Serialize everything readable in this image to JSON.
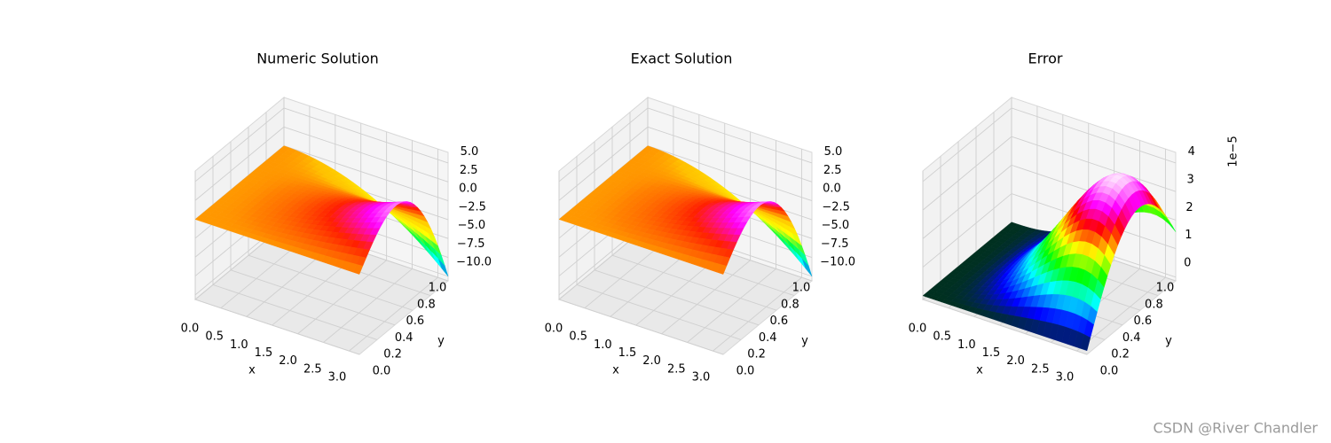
{
  "chart_data": [
    {
      "type": "surface",
      "title": "Numeric Solution",
      "xlabel": "x",
      "ylabel": "y",
      "xlim": [
        0,
        3.2
      ],
      "ylim": [
        0,
        1
      ],
      "zlim": [
        -10.6,
        6.4
      ],
      "xticks": [
        {
          "value": 0,
          "label": "0.0"
        },
        0.5,
        {
          "value": 1,
          "label": "1.0"
        },
        1.5,
        {
          "value": 2,
          "label": "2.0"
        },
        2.5,
        {
          "value": 3,
          "label": "3.0"
        }
      ],
      "yticks": [
        {
          "value": 0,
          "label": "0.0"
        },
        0.2,
        0.4,
        0.6,
        0.8,
        {
          "value": 1,
          "label": "1.0"
        }
      ],
      "zticks": [
        {
          "value": 5,
          "label": "5.0"
        },
        2.5,
        {
          "value": 0,
          "label": "0.0"
        },
        {
          "value": -2.5,
          "label": "−2.5"
        },
        {
          "value": -5,
          "label": "−5.0"
        },
        {
          "value": -7.5,
          "label": "−7.5"
        },
        {
          "value": -10,
          "label": "−10.0"
        }
      ]
    },
    {
      "type": "surface",
      "title": "Exact Solution",
      "xlabel": "x",
      "ylabel": "y",
      "xlim": [
        0,
        3.2
      ],
      "ylim": [
        0,
        1
      ],
      "zlim": [
        -10.6,
        6.4
      ],
      "xticks": [
        {
          "value": 0,
          "label": "0.0"
        },
        0.5,
        {
          "value": 1,
          "label": "1.0"
        },
        1.5,
        {
          "value": 2,
          "label": "2.0"
        },
        2.5,
        {
          "value": 3,
          "label": "3.0"
        }
      ],
      "yticks": [
        {
          "value": 0,
          "label": "0.0"
        },
        0.2,
        0.4,
        0.6,
        0.8,
        {
          "value": 1,
          "label": "1.0"
        }
      ],
      "zticks": [
        {
          "value": 5,
          "label": "5.0"
        },
        2.5,
        {
          "value": 0,
          "label": "0.0"
        },
        {
          "value": -2.5,
          "label": "−2.5"
        },
        {
          "value": -5,
          "label": "−5.0"
        },
        {
          "value": -7.5,
          "label": "−7.5"
        },
        {
          "value": -10,
          "label": "−10.0"
        }
      ]
    },
    {
      "type": "error-surface",
      "title": "Error",
      "xlabel": "x",
      "ylabel": "y",
      "z_offset_label": "1e−5",
      "xlim": [
        0,
        3.2
      ],
      "ylim": [
        0,
        1
      ],
      "zlim": [
        -0.13,
        4.37
      ],
      "xticks": [
        {
          "value": 0,
          "label": "0.0"
        },
        0.5,
        {
          "value": 1,
          "label": "1.0"
        },
        1.5,
        {
          "value": 2,
          "label": "2.0"
        },
        2.5,
        {
          "value": 3,
          "label": "3.0"
        }
      ],
      "yticks": [
        {
          "value": 0,
          "label": "0.0"
        },
        0.2,
        0.4,
        0.6,
        0.8,
        {
          "value": 1,
          "label": "1.0"
        }
      ],
      "zticks": [
        0,
        1,
        2,
        3,
        4
      ]
    }
  ],
  "watermark": "CSDN @River Chandler"
}
